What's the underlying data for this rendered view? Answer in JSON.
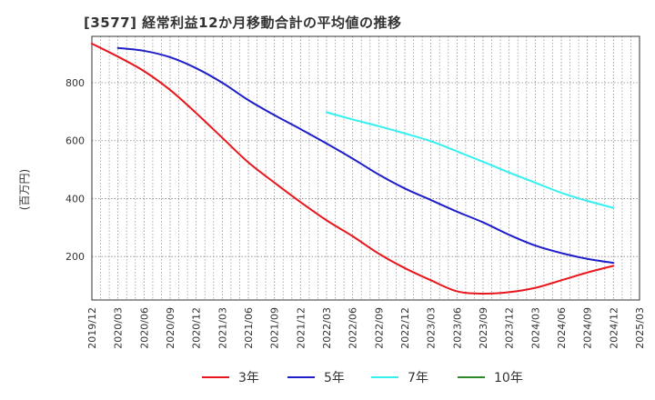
{
  "chart_data": {
    "type": "line",
    "title": "[3577]  経常利益12か月移動合計の平均値の推移",
    "ylabel": "(百万円)",
    "ylim": [
      50,
      960
    ],
    "yticks": [
      200,
      400,
      600,
      800
    ],
    "x_ticks": [
      "2019/12",
      "2020/03",
      "2020/06",
      "2020/09",
      "2020/12",
      "2021/03",
      "2021/06",
      "2021/09",
      "2021/12",
      "2022/03",
      "2022/06",
      "2022/09",
      "2022/12",
      "2023/03",
      "2023/06",
      "2023/09",
      "2023/12",
      "2024/03",
      "2024/06",
      "2024/09",
      "2024/12",
      "2025/03"
    ],
    "grid": true,
    "legend_position": "bottom",
    "series": [
      {
        "name": "3年",
        "color": "#e8171d",
        "x": [
          "2019/12",
          "2020/03",
          "2020/06",
          "2020/09",
          "2020/12",
          "2021/03",
          "2021/06",
          "2021/09",
          "2021/12",
          "2022/03",
          "2022/06",
          "2022/09",
          "2022/12",
          "2023/03",
          "2023/06",
          "2023/09",
          "2023/12",
          "2024/03",
          "2024/06",
          "2024/09",
          "2024/12"
        ],
        "values": [
          935,
          890,
          840,
          775,
          695,
          610,
          525,
          455,
          388,
          325,
          270,
          210,
          160,
          118,
          80,
          72,
          77,
          92,
          118,
          145,
          168
        ]
      },
      {
        "name": "5年",
        "color": "#1d1ec9",
        "x": [
          "2020/03",
          "2020/06",
          "2020/09",
          "2020/12",
          "2021/03",
          "2021/06",
          "2021/09",
          "2021/12",
          "2022/03",
          "2022/06",
          "2022/09",
          "2022/12",
          "2023/03",
          "2023/06",
          "2023/09",
          "2023/12",
          "2024/03",
          "2024/06",
          "2024/09",
          "2024/12"
        ],
        "values": [
          920,
          910,
          888,
          850,
          800,
          740,
          688,
          640,
          590,
          538,
          483,
          435,
          395,
          355,
          318,
          275,
          238,
          212,
          192,
          178
        ]
      },
      {
        "name": "7年",
        "color": "#35f0f0",
        "x": [
          "2022/03",
          "2022/06",
          "2022/09",
          "2022/12",
          "2023/03",
          "2023/06",
          "2023/09",
          "2023/12",
          "2024/03",
          "2024/06",
          "2024/09",
          "2024/12"
        ],
        "values": [
          698,
          673,
          650,
          625,
          598,
          563,
          527,
          490,
          455,
          420,
          392,
          368
        ]
      },
      {
        "name": "10年",
        "color": "#2a8a2a",
        "x": [],
        "values": []
      }
    ]
  }
}
